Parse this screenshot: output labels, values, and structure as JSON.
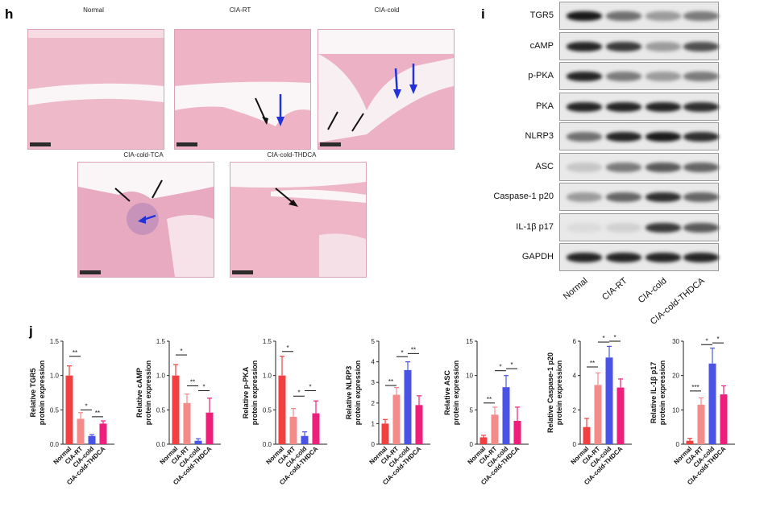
{
  "panel_h": {
    "letter": "h",
    "images": [
      {
        "title": "Normal"
      },
      {
        "title": "CIA-RT"
      },
      {
        "title": "CIA-cold"
      },
      {
        "title": "CIA-cold-TCA"
      },
      {
        "title": "CIA-cold-THDCA"
      }
    ]
  },
  "panel_i": {
    "letter": "i",
    "rows": [
      {
        "label": "TGR5",
        "intensity": [
          0.95,
          0.55,
          0.35,
          0.5
        ]
      },
      {
        "label": "cAMP",
        "intensity": [
          0.9,
          0.8,
          0.35,
          0.7
        ]
      },
      {
        "label": "p-PKA",
        "intensity": [
          0.9,
          0.5,
          0.35,
          0.5
        ]
      },
      {
        "label": "PKA",
        "intensity": [
          0.9,
          0.9,
          0.9,
          0.85
        ]
      },
      {
        "label": "NLRP3",
        "intensity": [
          0.55,
          0.9,
          0.95,
          0.85
        ]
      },
      {
        "label": "ASC",
        "intensity": [
          0.15,
          0.5,
          0.65,
          0.6
        ]
      },
      {
        "label": "Caspase-1 p20",
        "intensity": [
          0.35,
          0.6,
          0.85,
          0.6
        ]
      },
      {
        "label": "IL-1β  p17",
        "intensity": [
          0.05,
          0.1,
          0.8,
          0.65
        ]
      },
      {
        "label": "GAPDH",
        "intensity": [
          0.9,
          0.9,
          0.9,
          0.9
        ]
      }
    ],
    "lanes": [
      "Normal",
      "CIA-RT",
      "CIA-cold",
      "CIA-cold-THDCA"
    ]
  },
  "panel_j": {
    "letter": "j"
  },
  "chart_data": [
    {
      "type": "bar",
      "ylabel": "Relative TGR5 protein expression",
      "categories": [
        "Normal",
        "CIA-RT",
        "CIA-cold",
        "CIA-cold-THDCA"
      ],
      "values": [
        1.0,
        0.37,
        0.12,
        0.3
      ],
      "errors": [
        0.14,
        0.09,
        0.02,
        0.04
      ],
      "ylim": [
        0,
        1.5
      ],
      "ticks": [
        "0.0",
        "0.5",
        "1.0",
        "1.5"
      ],
      "colors": [
        "#f0403f",
        "#f48a8a",
        "#4b52e6",
        "#ee1f7a"
      ],
      "sig": [
        {
          "from": 0,
          "to": 1,
          "label": "**",
          "y": 1.28
        },
        {
          "from": 1,
          "to": 2,
          "label": "*",
          "y": 0.5
        },
        {
          "from": 2,
          "to": 3,
          "label": "**",
          "y": 0.4
        }
      ]
    },
    {
      "type": "bar",
      "ylabel": "Relative cAMP protein expression",
      "categories": [
        "Normal",
        "CIA-RT",
        "CIA-cold",
        "CIA-cold-THDCA"
      ],
      "values": [
        1.0,
        0.6,
        0.05,
        0.46
      ],
      "errors": [
        0.16,
        0.13,
        0.03,
        0.21
      ],
      "ylim": [
        0,
        1.5
      ],
      "ticks": [
        "0.0",
        "0.5",
        "1.0",
        "1.5"
      ],
      "colors": [
        "#f0403f",
        "#f48a8a",
        "#4b52e6",
        "#ee1f7a"
      ],
      "sig": [
        {
          "from": 0,
          "to": 1,
          "label": "*",
          "y": 1.3
        },
        {
          "from": 1,
          "to": 2,
          "label": "**",
          "y": 0.85
        },
        {
          "from": 2,
          "to": 3,
          "label": "*",
          "y": 0.78
        }
      ]
    },
    {
      "type": "bar",
      "ylabel": "Relative p-PKA protein expression",
      "categories": [
        "Normal",
        "CIA-RT",
        "CIA-cold",
        "CIA-cold-THDCA"
      ],
      "values": [
        1.0,
        0.4,
        0.12,
        0.45
      ],
      "errors": [
        0.28,
        0.12,
        0.06,
        0.18
      ],
      "ylim": [
        0,
        1.5
      ],
      "ticks": [
        "0.0",
        "0.5",
        "1.0",
        "1.5"
      ],
      "colors": [
        "#f0403f",
        "#f48a8a",
        "#4b52e6",
        "#ee1f7a"
      ],
      "sig": [
        {
          "from": 0,
          "to": 1,
          "label": "*",
          "y": 1.35
        },
        {
          "from": 1,
          "to": 2,
          "label": "*",
          "y": 0.7
        },
        {
          "from": 2,
          "to": 3,
          "label": "*",
          "y": 0.78
        }
      ]
    },
    {
      "type": "bar",
      "ylabel": "Relative NLRP3 protein expression",
      "categories": [
        "Normal",
        "CIA-RT",
        "CIA-cold",
        "CIA-cold-THDCA"
      ],
      "values": [
        1.0,
        2.4,
        3.6,
        1.9
      ],
      "errors": [
        0.2,
        0.35,
        0.4,
        0.45
      ],
      "ylim": [
        0,
        5
      ],
      "ticks": [
        "0",
        "1",
        "2",
        "3",
        "4",
        "5"
      ],
      "colors": [
        "#f0403f",
        "#f48a8a",
        "#4b52e6",
        "#ee1f7a"
      ],
      "sig": [
        {
          "from": 0,
          "to": 1,
          "label": "**",
          "y": 2.85
        },
        {
          "from": 1,
          "to": 2,
          "label": "*",
          "y": 4.25
        },
        {
          "from": 2,
          "to": 3,
          "label": "**",
          "y": 4.4
        }
      ]
    },
    {
      "type": "bar",
      "ylabel": "Relative ASC protein expression",
      "categories": [
        "Normal",
        "CIA-RT",
        "CIA-cold",
        "CIA-cold-THDCA"
      ],
      "values": [
        1.0,
        4.3,
        8.3,
        3.4
      ],
      "errors": [
        0.3,
        1.1,
        1.7,
        2.0
      ],
      "ylim": [
        0,
        15
      ],
      "ticks": [
        "0",
        "5",
        "10",
        "15"
      ],
      "colors": [
        "#f0403f",
        "#f48a8a",
        "#4b52e6",
        "#ee1f7a"
      ],
      "sig": [
        {
          "from": 0,
          "to": 1,
          "label": "**",
          "y": 6.0
        },
        {
          "from": 1,
          "to": 2,
          "label": "*",
          "y": 10.7
        },
        {
          "from": 2,
          "to": 3,
          "label": "*",
          "y": 11.0
        }
      ]
    },
    {
      "type": "bar",
      "ylabel": "Relative Caspase-1 p20 protein expression",
      "categories": [
        "Normal",
        "CIA-RT",
        "CIA-cold",
        "CIA-cold-THDCA"
      ],
      "values": [
        1.0,
        3.45,
        5.05,
        3.3
      ],
      "errors": [
        0.5,
        0.7,
        0.65,
        0.5
      ],
      "ylim": [
        0,
        6
      ],
      "ticks": [
        "0",
        "2",
        "4",
        "6"
      ],
      "colors": [
        "#f0403f",
        "#f48a8a",
        "#4b52e6",
        "#ee1f7a"
      ],
      "sig": [
        {
          "from": 0,
          "to": 1,
          "label": "**",
          "y": 4.5
        },
        {
          "from": 1,
          "to": 2,
          "label": "*",
          "y": 5.95
        },
        {
          "from": 2,
          "to": 3,
          "label": "*",
          "y": 6.0
        }
      ]
    },
    {
      "type": "bar",
      "ylabel": "Relative IL-1β p17 protein expression",
      "categories": [
        "Normal",
        "CIA-RT",
        "CIA-cold",
        "CIA-cold-THDCA"
      ],
      "values": [
        1.0,
        11.5,
        23.5,
        14.5
      ],
      "errors": [
        0.7,
        2.0,
        4.5,
        2.5
      ],
      "ylim": [
        0,
        30
      ],
      "ticks": [
        "0",
        "10",
        "20",
        "30"
      ],
      "colors": [
        "#f0403f",
        "#f48a8a",
        "#4b52e6",
        "#ee1f7a"
      ],
      "sig": [
        {
          "from": 0,
          "to": 1,
          "label": "***",
          "y": 15.5
        },
        {
          "from": 1,
          "to": 2,
          "label": "*",
          "y": 29.0
        },
        {
          "from": 2,
          "to": 3,
          "label": "*",
          "y": 29.5
        }
      ]
    }
  ]
}
